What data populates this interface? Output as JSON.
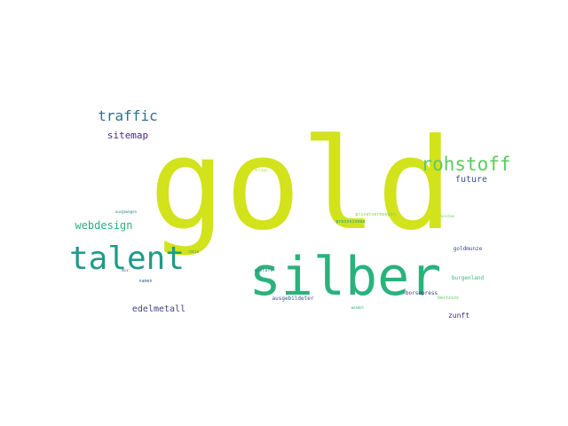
{
  "words": {
    "gold": "gold",
    "silber": "silber",
    "talent": "talent",
    "rohstoff": "rohstoff",
    "traffic": "traffic",
    "sitemap": "sitemap",
    "webdesign": "webdesign",
    "future": "future",
    "edelmetall": "edelmetall",
    "zunft": "zunft",
    "goldmunze": "goldmunze",
    "burgenland": "burgenland",
    "borsepress": "borsepress",
    "bestzins": "bestzins",
    "ausgebildeter": "ausgebildeter",
    "anstufe": "anstufe",
    "namen": "namen",
    "preisniveau": "preisniveau",
    "privatvermoegen": "privatvermoegen",
    "tiny_01": "ausgewogen",
    "tiny_02": "anlage",
    "tiny_03": "hoschee",
    "tiny_04": "ratio",
    "tiny_05": "mix",
    "tiny_06": "wandel"
  },
  "colors": {
    "gold": "#d2e21b",
    "silber": "#2ab27d",
    "talent": "#1f9a8a",
    "rohstoff": "#5ec962",
    "traffic": "#2c728e",
    "sitemap": "#472d7b",
    "webdesign": "#29af7f",
    "future": "#3b528b",
    "edelmetall": "#414487",
    "zunft": "#482878",
    "goldmunze": "#3e4a89",
    "burgenland": "#35b779",
    "borsepress": "#443983",
    "bestzins": "#5ec962",
    "ausgebildeter": "#3b528b",
    "anstufe": "#2c728e",
    "namen": "#31688e",
    "preisniveau": "#1fa187",
    "privatvermoegen": "#86d549",
    "tiny_01": "#26828e",
    "tiny_02": "#bddf26",
    "tiny_03": "#7ad151",
    "tiny_04": "#21918c",
    "tiny_05": "#3e4989",
    "tiny_06": "#22a884"
  }
}
